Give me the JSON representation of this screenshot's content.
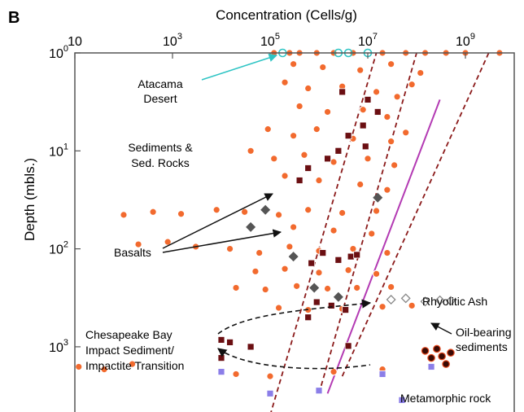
{
  "panel_label": "B",
  "chart_data": {
    "type": "scatter",
    "title": "",
    "xlabel": "Concentration (Cells/g)",
    "ylabel": "Depth (mbls.)",
    "xscale": "log",
    "yscale": "log",
    "x_axis_position": "top",
    "y_axis_inverted": true,
    "xlim": [
      10,
      10000000000.0
    ],
    "ylim": [
      1,
      5000
    ],
    "x_ticks": [
      {
        "value": 10,
        "base": "10",
        "exp": ""
      },
      {
        "value": 1000,
        "base": "10",
        "exp": "3"
      },
      {
        "value": 100000,
        "base": "10",
        "exp": "5"
      },
      {
        "value": 10000000,
        "base": "10",
        "exp": "7"
      },
      {
        "value": 1000000000,
        "base": "10",
        "exp": "9"
      }
    ],
    "y_ticks": [
      {
        "value": 1,
        "base": "10",
        "exp": "0"
      },
      {
        "value": 10,
        "base": "10",
        "exp": "1"
      },
      {
        "value": 100,
        "base": "10",
        "exp": "2"
      },
      {
        "value": 1000,
        "base": "10",
        "exp": "3"
      }
    ],
    "colors": {
      "sediments": "#f26a2e",
      "chesapeake": "#6b0f12",
      "basalts": "#555555",
      "rhyolitic": "#888888",
      "metamorphic": "#8b7ee8",
      "atacama": "#2ec4c4",
      "oil": "#e8481c",
      "magenta_fit": "#b33ab3",
      "fit_lines": "#8b1a1a"
    },
    "series": [
      {
        "key": "sediments",
        "marker": "circle",
        "values": [
          [
            120000,
            1
          ],
          [
            250000,
            1
          ],
          [
            400000,
            1
          ],
          [
            900000,
            1
          ],
          [
            2000000,
            1
          ],
          [
            5000000,
            1
          ],
          [
            20000000,
            1
          ],
          [
            60000000,
            1
          ],
          [
            150000000,
            1
          ],
          [
            400000000,
            1
          ],
          [
            1000000000,
            1
          ],
          [
            5000000000,
            1
          ],
          [
            300000,
            1.3
          ],
          [
            1200000,
            1.4
          ],
          [
            7000000,
            1.5
          ],
          [
            30000000,
            1.3
          ],
          [
            120000000,
            1.6
          ],
          [
            200000,
            2
          ],
          [
            600000,
            2.3
          ],
          [
            3000000,
            2.2
          ],
          [
            15000000,
            2.5
          ],
          [
            40000000,
            2.8
          ],
          [
            80000000,
            2.1
          ],
          [
            400000,
            3.5
          ],
          [
            1500000,
            4
          ],
          [
            8000000,
            3.8
          ],
          [
            25000000,
            4.5
          ],
          [
            90000,
            6
          ],
          [
            300000,
            7
          ],
          [
            900000,
            6
          ],
          [
            5000000,
            7.5
          ],
          [
            30000000,
            8
          ],
          [
            60000000,
            6.5
          ],
          [
            40000,
            10
          ],
          [
            120000,
            12
          ],
          [
            500000,
            11
          ],
          [
            2000000,
            13
          ],
          [
            10000000,
            12
          ],
          [
            35000000,
            14
          ],
          [
            200000,
            18
          ],
          [
            1000000,
            20
          ],
          [
            7000000,
            22
          ],
          [
            25000000,
            25
          ],
          [
            100,
            45
          ],
          [
            400,
            42
          ],
          [
            1500,
            44
          ],
          [
            8000,
            40
          ],
          [
            30000,
            42
          ],
          [
            150000,
            45
          ],
          [
            600000,
            40
          ],
          [
            3000000,
            43
          ],
          [
            15000000,
            41
          ],
          [
            300000,
            60
          ],
          [
            2000000,
            65
          ],
          [
            12000000,
            70
          ],
          [
            200,
            90
          ],
          [
            800,
            85
          ],
          [
            3000,
            95
          ],
          [
            15000,
            100
          ],
          [
            60000,
            110
          ],
          [
            250000,
            95
          ],
          [
            1000000,
            105
          ],
          [
            5000000,
            100
          ],
          [
            25000000,
            110
          ],
          [
            50000,
            170
          ],
          [
            200000,
            160
          ],
          [
            1000000,
            175
          ],
          [
            4000000,
            165
          ],
          [
            15000000,
            180
          ],
          [
            20000,
            250
          ],
          [
            80000,
            260
          ],
          [
            350000,
            240
          ],
          [
            1500000,
            255
          ],
          [
            6000000,
            250
          ],
          [
            30000000,
            245
          ],
          [
            150000,
            400
          ],
          [
            600000,
            420
          ],
          [
            3000000,
            410
          ],
          [
            20000000,
            390
          ],
          [
            80000000,
            380
          ],
          [
            12,
            1600
          ],
          [
            40,
            1700
          ],
          [
            150,
            1500
          ],
          [
            20000,
            1900
          ],
          [
            100000,
            2000
          ],
          [
            2000000,
            1800
          ],
          [
            20000000,
            1700
          ]
        ]
      },
      {
        "key": "chesapeake",
        "marker": "square",
        "values": [
          [
            3000000,
            2.5
          ],
          [
            10000000,
            3
          ],
          [
            16000000,
            4
          ],
          [
            8000000,
            5.5
          ],
          [
            4000000,
            7
          ],
          [
            1500000,
            12
          ],
          [
            400000,
            20
          ],
          [
            2500000,
            10
          ],
          [
            9000000,
            9
          ],
          [
            600000,
            15
          ],
          [
            1200000,
            110
          ],
          [
            2500000,
            130
          ],
          [
            4500000,
            120
          ],
          [
            700000,
            140
          ],
          [
            6000000,
            115
          ],
          [
            900000,
            350
          ],
          [
            1800000,
            380
          ],
          [
            3500000,
            420
          ],
          [
            600000,
            500
          ],
          [
            10000,
            850
          ],
          [
            15000,
            900
          ],
          [
            40000,
            1000
          ],
          [
            10000,
            1300
          ],
          [
            4000000,
            980
          ]
        ]
      },
      {
        "key": "basalts",
        "marker": "diamond",
        "values": [
          [
            40000,
            60
          ],
          [
            80000,
            40
          ],
          [
            300000,
            120
          ],
          [
            800000,
            250
          ],
          [
            2500000,
            310
          ],
          [
            16000000,
            30
          ]
        ]
      },
      {
        "key": "rhyolitic",
        "marker": "diamond-open",
        "values": [
          [
            30000000,
            330
          ],
          [
            60000000,
            320
          ],
          [
            150000000,
            345
          ],
          [
            300000000,
            335
          ],
          [
            500000000,
            340
          ]
        ]
      },
      {
        "key": "metamorphic",
        "marker": "square",
        "values": [
          [
            10000,
            1800
          ],
          [
            100000,
            3000
          ],
          [
            1000000,
            2800
          ],
          [
            20000000,
            1900
          ],
          [
            50000000,
            3500
          ],
          [
            200000000,
            1600
          ]
        ]
      },
      {
        "key": "atacama",
        "marker": "circle-open",
        "values": [
          [
            180000,
            1
          ],
          [
            2500000,
            1
          ],
          [
            4000000,
            1
          ],
          [
            10000000,
            1
          ]
        ]
      },
      {
        "key": "oil",
        "marker": "circle",
        "values": [
          [
            150000000,
            1100
          ],
          [
            200000000,
            1300
          ],
          [
            260000000,
            1050
          ],
          [
            330000000,
            1250
          ],
          [
            400000000,
            1500
          ],
          [
            500000000,
            1150
          ]
        ]
      }
    ],
    "annotations": [
      {
        "text": "Atacama",
        "color": "#2ec4c4"
      },
      {
        "text": "Desert",
        "color": "#2ec4c4"
      },
      {
        "text": "Sediments &",
        "color": "#f26a2e"
      },
      {
        "text": "Sed. Rocks",
        "color": "#f26a2e"
      },
      {
        "text": "Basalts",
        "color": "#000000"
      },
      {
        "text": "Rhyolitic Ash",
        "color": "#777777"
      },
      {
        "text": "Chesapeake Bay",
        "color": "#7a1010"
      },
      {
        "text": "Impact Sediment/",
        "color": "#7a1010"
      },
      {
        "text": "Impactite Transition",
        "color": "#7a1010"
      },
      {
        "text": "Oil-bearing",
        "color": "#000000"
      },
      {
        "text": "sediments",
        "color": "#000000"
      },
      {
        "text": "Metamorphic rock",
        "color": "#6a4fd8"
      }
    ]
  }
}
